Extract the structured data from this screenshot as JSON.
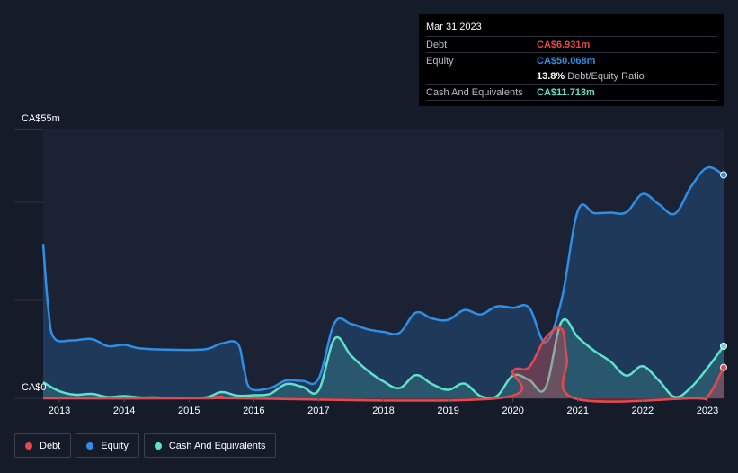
{
  "tooltip": {
    "date": "Mar 31 2023",
    "rows": [
      {
        "label": "Debt",
        "value": "CA$6.931m",
        "color": "#e5484d"
      },
      {
        "label": "Equity",
        "value": "CA$50.068m",
        "color": "#2f8ee5"
      },
      {
        "ratio_pct": "13.8%",
        "ratio_label": "Debt/Equity Ratio"
      },
      {
        "label": "Cash And Equivalents",
        "value": "CA$11.713m",
        "color": "#5ee2cc"
      }
    ]
  },
  "legend": [
    {
      "label": "Debt",
      "color": "#e5484d"
    },
    {
      "label": "Equity",
      "color": "#2f8ee5"
    },
    {
      "label": "Cash And Equivalents",
      "color": "#5ee2cc"
    }
  ],
  "chart_data": {
    "type": "area",
    "title": "",
    "xlabel": "",
    "ylabel": "",
    "y_top_label": "CA$55m",
    "y_bottom_label": "CA$0",
    "ylim": [
      0,
      55
    ],
    "xlim": [
      2012.75,
      2023.25
    ],
    "x_ticks": [
      "2013",
      "2014",
      "2015",
      "2016",
      "2017",
      "2018",
      "2019",
      "2020",
      "2021",
      "2022",
      "2023"
    ],
    "grid": true,
    "legend_position": "bottom-left",
    "series": [
      {
        "name": "Equity",
        "color": "#2f8ee5",
        "points": [
          [
            2012.75,
            34.6
          ],
          [
            2012.83,
            20.0
          ],
          [
            2012.92,
            13.5
          ],
          [
            2013.2,
            13.0
          ],
          [
            2013.5,
            13.3
          ],
          [
            2013.75,
            11.7
          ],
          [
            2014.0,
            12.0
          ],
          [
            2014.25,
            11.2
          ],
          [
            2014.75,
            10.9
          ],
          [
            2015.25,
            11.0
          ],
          [
            2015.5,
            12.3
          ],
          [
            2015.75,
            12.3
          ],
          [
            2015.85,
            6.5
          ],
          [
            2015.95,
            2.2
          ],
          [
            2016.25,
            2.3
          ],
          [
            2016.5,
            4.0
          ],
          [
            2016.75,
            3.9
          ],
          [
            2017.0,
            4.4
          ],
          [
            2017.25,
            17.0
          ],
          [
            2017.5,
            16.7
          ],
          [
            2017.75,
            15.5
          ],
          [
            2018.0,
            14.9
          ],
          [
            2018.25,
            14.7
          ],
          [
            2018.5,
            19.2
          ],
          [
            2018.75,
            17.9
          ],
          [
            2019.0,
            17.6
          ],
          [
            2019.25,
            19.8
          ],
          [
            2019.5,
            18.8
          ],
          [
            2019.75,
            20.6
          ],
          [
            2020.0,
            20.3
          ],
          [
            2020.25,
            20.3
          ],
          [
            2020.5,
            12.6
          ],
          [
            2020.75,
            22.1
          ],
          [
            2021.0,
            42.0
          ],
          [
            2021.25,
            41.5
          ],
          [
            2021.5,
            41.6
          ],
          [
            2021.75,
            41.7
          ],
          [
            2022.0,
            45.8
          ],
          [
            2022.25,
            43.5
          ],
          [
            2022.5,
            41.4
          ],
          [
            2022.75,
            47.5
          ],
          [
            2023.0,
            51.7
          ],
          [
            2023.25,
            50.068
          ]
        ]
      },
      {
        "name": "Cash And Equivalents",
        "color": "#5ee2cc",
        "points": [
          [
            2012.75,
            3.6
          ],
          [
            2013.0,
            1.6
          ],
          [
            2013.25,
            0.8
          ],
          [
            2013.5,
            1.0
          ],
          [
            2013.75,
            0.3
          ],
          [
            2014.0,
            0.5
          ],
          [
            2014.25,
            0.2
          ],
          [
            2014.5,
            0.2
          ],
          [
            2014.75,
            0.1
          ],
          [
            2015.25,
            0.2
          ],
          [
            2015.5,
            1.4
          ],
          [
            2015.75,
            0.6
          ],
          [
            2016.0,
            0.7
          ],
          [
            2016.25,
            1.0
          ],
          [
            2016.5,
            3.2
          ],
          [
            2016.75,
            2.6
          ],
          [
            2017.0,
            1.8
          ],
          [
            2017.25,
            13.4
          ],
          [
            2017.5,
            9.6
          ],
          [
            2017.75,
            6.3
          ],
          [
            2018.0,
            3.8
          ],
          [
            2018.25,
            2.3
          ],
          [
            2018.5,
            5.2
          ],
          [
            2018.75,
            3.2
          ],
          [
            2019.0,
            1.9
          ],
          [
            2019.25,
            3.3
          ],
          [
            2019.5,
            0.5
          ],
          [
            2019.75,
            0.5
          ],
          [
            2020.0,
            5.1
          ],
          [
            2020.25,
            4.1
          ],
          [
            2020.5,
            2.3
          ],
          [
            2020.75,
            17.2
          ],
          [
            2021.0,
            13.7
          ],
          [
            2021.25,
            10.7
          ],
          [
            2021.5,
            8.3
          ],
          [
            2021.75,
            5.1
          ],
          [
            2022.0,
            7.2
          ],
          [
            2022.25,
            4.0
          ],
          [
            2022.5,
            0.3
          ],
          [
            2022.75,
            2.5
          ],
          [
            2023.0,
            6.8
          ],
          [
            2023.25,
            11.713
          ]
        ]
      },
      {
        "name": "Debt",
        "color": "#e5484d",
        "points": [
          [
            2012.75,
            0.0
          ],
          [
            2015.25,
            0.0
          ],
          [
            2015.5,
            0.4
          ],
          [
            2015.75,
            0.0
          ],
          [
            2019.75,
            0.0
          ],
          [
            2020.0,
            6.2
          ],
          [
            2020.25,
            7.0
          ],
          [
            2020.5,
            13.5
          ],
          [
            2020.75,
            15.6
          ],
          [
            2020.83,
            9.0
          ],
          [
            2020.95,
            0.0
          ],
          [
            2022.75,
            0.0
          ],
          [
            2023.0,
            0.4
          ],
          [
            2023.25,
            6.931
          ]
        ]
      }
    ]
  }
}
